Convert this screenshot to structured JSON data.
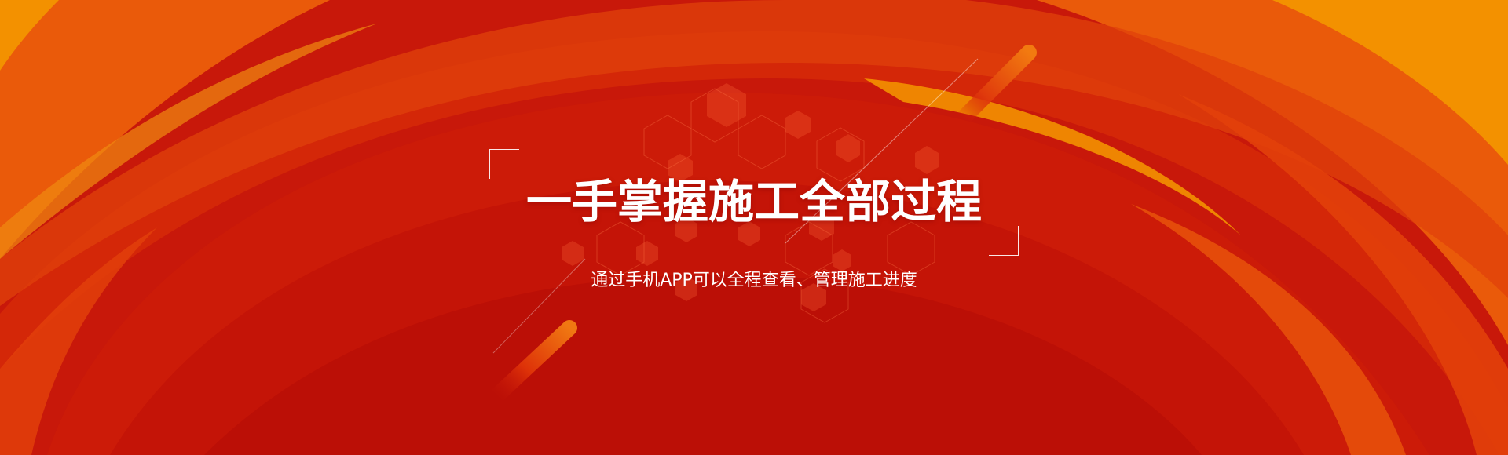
{
  "banner": {
    "title": "一手掌握施工全部过程",
    "subtitle": "通过手机APP可以全程查看、管理施工进度"
  },
  "colors": {
    "base_red": "#c8180a",
    "deep_red": "#b50e06",
    "mid_red": "#d8250a",
    "orange_red": "#e2400a",
    "orange": "#ea5a0a",
    "amber": "#f39100",
    "text": "#ffffff"
  }
}
